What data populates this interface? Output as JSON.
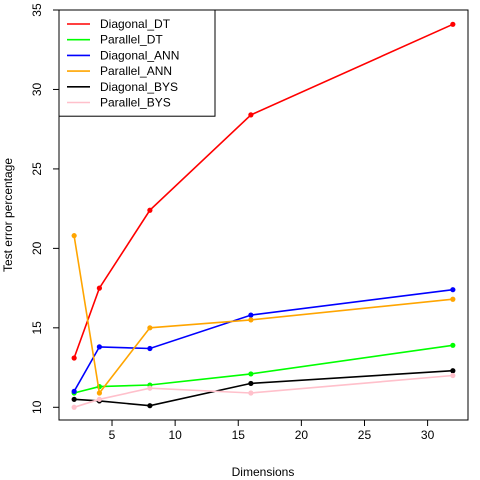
{
  "chart_data": {
    "type": "line",
    "x": [
      2,
      4,
      8,
      16,
      32
    ],
    "xlabel": "Dimensions",
    "ylabel": "Test error percentage",
    "xlim": [
      0.8,
      33.2
    ],
    "ylim": [
      9.2,
      35.0
    ],
    "xticks": [
      5,
      10,
      15,
      20,
      25,
      30
    ],
    "yticks": [
      10,
      15,
      20,
      25,
      30,
      35
    ],
    "grid": false,
    "legend_position": "top-left",
    "series": [
      {
        "name": "Diagonal_DT",
        "color": "#ff0000",
        "values": [
          13.1,
          17.5,
          22.4,
          28.4,
          34.1
        ]
      },
      {
        "name": "Parallel_DT",
        "color": "#00ff00",
        "values": [
          10.9,
          11.3,
          11.4,
          12.1,
          13.9
        ]
      },
      {
        "name": "Diagonal_ANN",
        "color": "#0000ff",
        "values": [
          11.0,
          13.8,
          13.7,
          15.8,
          17.4
        ]
      },
      {
        "name": "Parallel_ANN",
        "color": "#ffa500",
        "values": [
          20.8,
          10.9,
          15.0,
          15.5,
          16.8
        ]
      },
      {
        "name": "Diagonal_BYS",
        "color": "#000000",
        "values": [
          10.5,
          10.4,
          10.1,
          11.5,
          12.3
        ]
      },
      {
        "name": "Parallel_BYS",
        "color": "#ffc0cb",
        "values": [
          10.0,
          10.5,
          11.2,
          10.9,
          12.0
        ]
      }
    ]
  }
}
